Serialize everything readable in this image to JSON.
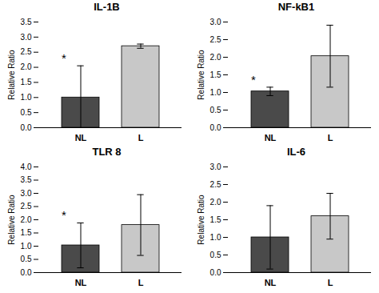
{
  "chart_data": [
    {
      "type": "bar",
      "title": "IL-1B",
      "ylabel": "Relative Ratio",
      "categories": [
        "NL",
        "L"
      ],
      "values": [
        1.0,
        2.7
      ],
      "errors_upper": [
        1.05,
        0.07
      ],
      "errors_lower": [
        1.0,
        0.07
      ],
      "colors": [
        "#4a4a4a",
        "#c8c8c8"
      ],
      "annotations": [
        {
          "category": "NL",
          "text": "*"
        }
      ],
      "ylim": [
        0,
        3.5
      ],
      "yticks": [
        {
          "value": 0,
          "label": "0.0"
        },
        0.5,
        {
          "value": 1,
          "label": "1.0"
        },
        1.5,
        {
          "value": 2,
          "label": "2.0"
        },
        2.5,
        {
          "value": 3,
          "label": "3.0"
        },
        3.5
      ]
    },
    {
      "type": "bar",
      "title": "NF-kB1",
      "ylabel": "Relative Ratio",
      "categories": [
        "NL",
        "L"
      ],
      "values": [
        1.03,
        2.03
      ],
      "errors_upper": [
        0.12,
        0.88
      ],
      "errors_lower": [
        0.12,
        0.88
      ],
      "colors": [
        "#4a4a4a",
        "#c8c8c8"
      ],
      "annotations": [
        {
          "category": "NL",
          "text": "*"
        }
      ],
      "ylim": [
        0,
        3.0
      ],
      "yticks": [
        {
          "value": 0,
          "label": "0.0"
        },
        0.5,
        {
          "value": 1,
          "label": "1.0"
        },
        1.5,
        {
          "value": 2,
          "label": "2.0"
        },
        2.5,
        {
          "value": 3,
          "label": "3.0"
        }
      ]
    },
    {
      "type": "bar",
      "title": "TLR 8",
      "ylabel": "Relative Ratio",
      "categories": [
        "NL",
        "L"
      ],
      "values": [
        1.03,
        1.8
      ],
      "errors_upper": [
        0.85,
        1.15
      ],
      "errors_lower": [
        0.85,
        1.15
      ],
      "colors": [
        "#4a4a4a",
        "#c8c8c8"
      ],
      "annotations": [
        {
          "category": "NL",
          "text": "*"
        }
      ],
      "ylim": [
        0,
        4.0
      ],
      "yticks": [
        {
          "value": 0,
          "label": "0.0"
        },
        0.5,
        {
          "value": 1,
          "label": "1.0"
        },
        1.5,
        {
          "value": 2,
          "label": "2.0"
        },
        2.5,
        {
          "value": 3,
          "label": "3.0"
        },
        3.5,
        {
          "value": 4,
          "label": "4.0"
        }
      ]
    },
    {
      "type": "bar",
      "title": "IL-6",
      "ylabel": "Relative Ratio",
      "categories": [
        "NL",
        "L"
      ],
      "values": [
        1.0,
        1.6
      ],
      "errors_upper": [
        0.9,
        0.65
      ],
      "errors_lower": [
        0.9,
        0.65
      ],
      "colors": [
        "#4a4a4a",
        "#c8c8c8"
      ],
      "annotations": [],
      "ylim": [
        0,
        3.0
      ],
      "yticks": [
        {
          "value": 0,
          "label": "0.0"
        },
        0.5,
        {
          "value": 1,
          "label": "1.0"
        },
        1.5,
        {
          "value": 2,
          "label": "2.0"
        },
        2.5,
        {
          "value": 3,
          "label": "3.0"
        }
      ]
    }
  ]
}
